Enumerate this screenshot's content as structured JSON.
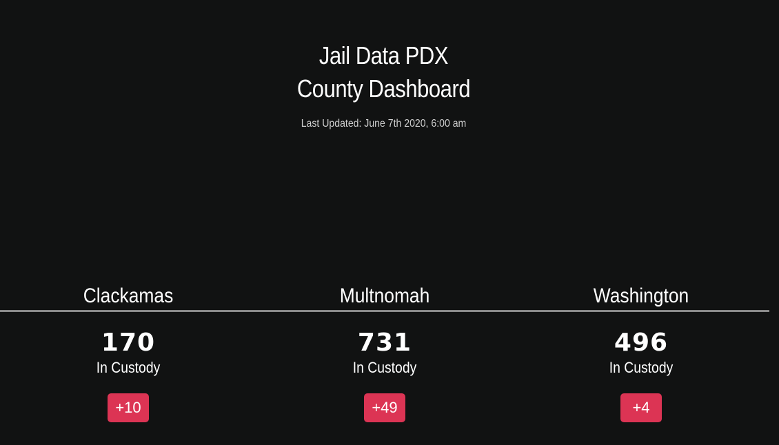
{
  "header": {
    "title_line1": "Jail Data PDX",
    "title_line2": "County Dashboard",
    "last_updated": "Last Updated: June 7th 2020, 6:00 am"
  },
  "counties": [
    {
      "name": "Clackamas",
      "count": "170",
      "label": "In Custody",
      "change": "+10"
    },
    {
      "name": "Multnomah",
      "count": "731",
      "label": "In Custody",
      "change": "+49"
    },
    {
      "name": "Washington",
      "count": "496",
      "label": "In Custody",
      "change": "+4"
    }
  ],
  "colors": {
    "background": "#111212",
    "badge": "#dc3454",
    "divider": "#8a8a8a"
  }
}
